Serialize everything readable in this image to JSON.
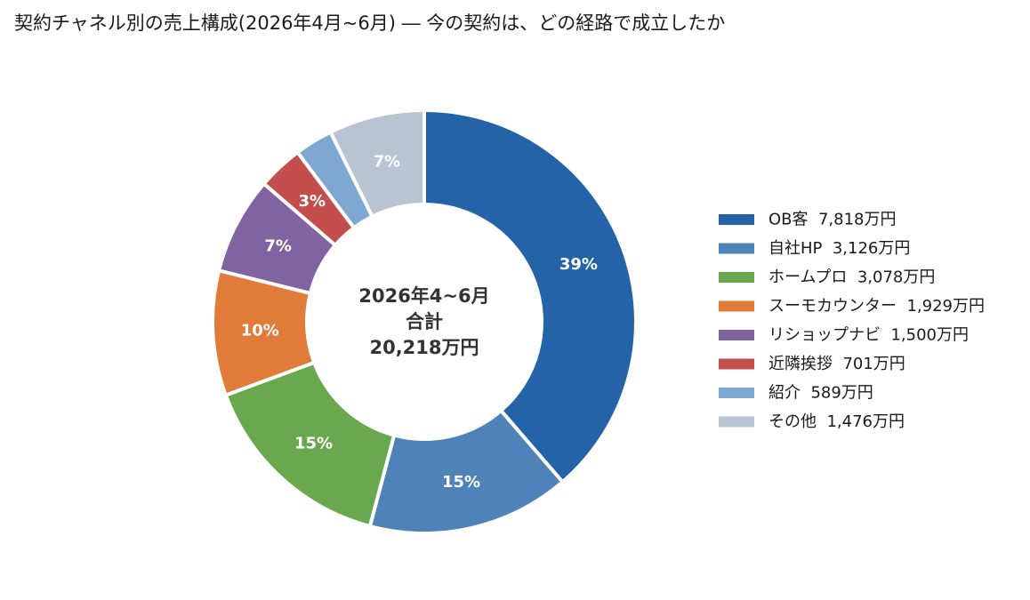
{
  "chart_data": {
    "type": "pie",
    "donut": true,
    "title": "契約チャネル別の売上構成(2026年4月~6月) ― 今の契約は、どの経路で成立したか",
    "center_label": [
      "2026年4~6月",
      "合計",
      "20,218万円"
    ],
    "legend_position": "right",
    "series": [
      {
        "name": "OB客",
        "value": 7818,
        "value_label": "7,818万円",
        "pct_label": "39%",
        "color": "#2563a8"
      },
      {
        "name": "自社HP",
        "value": 3126,
        "value_label": "3,126万円",
        "pct_label": "15%",
        "color": "#4f82b8"
      },
      {
        "name": "ホームプロ",
        "value": 3078,
        "value_label": "3,078万円",
        "pct_label": "15%",
        "color": "#6aa84f"
      },
      {
        "name": "スーモカウンター",
        "value": 1929,
        "value_label": "1,929万円",
        "pct_label": "10%",
        "color": "#e07b39"
      },
      {
        "name": "リショップナビ",
        "value": 1500,
        "value_label": "1,500万円",
        "pct_label": "7%",
        "color": "#8064a2"
      },
      {
        "name": "近隣挨拶",
        "value": 701,
        "value_label": "701万円",
        "pct_label": "3%",
        "color": "#c44e4e"
      },
      {
        "name": "紹介",
        "value": 589,
        "value_label": "589万円",
        "pct_label": "",
        "color": "#7ea7d1"
      },
      {
        "name": "その他",
        "value": 1476,
        "value_label": "1,476万円",
        "pct_label": "7%",
        "color": "#b8c4d2"
      }
    ]
  }
}
